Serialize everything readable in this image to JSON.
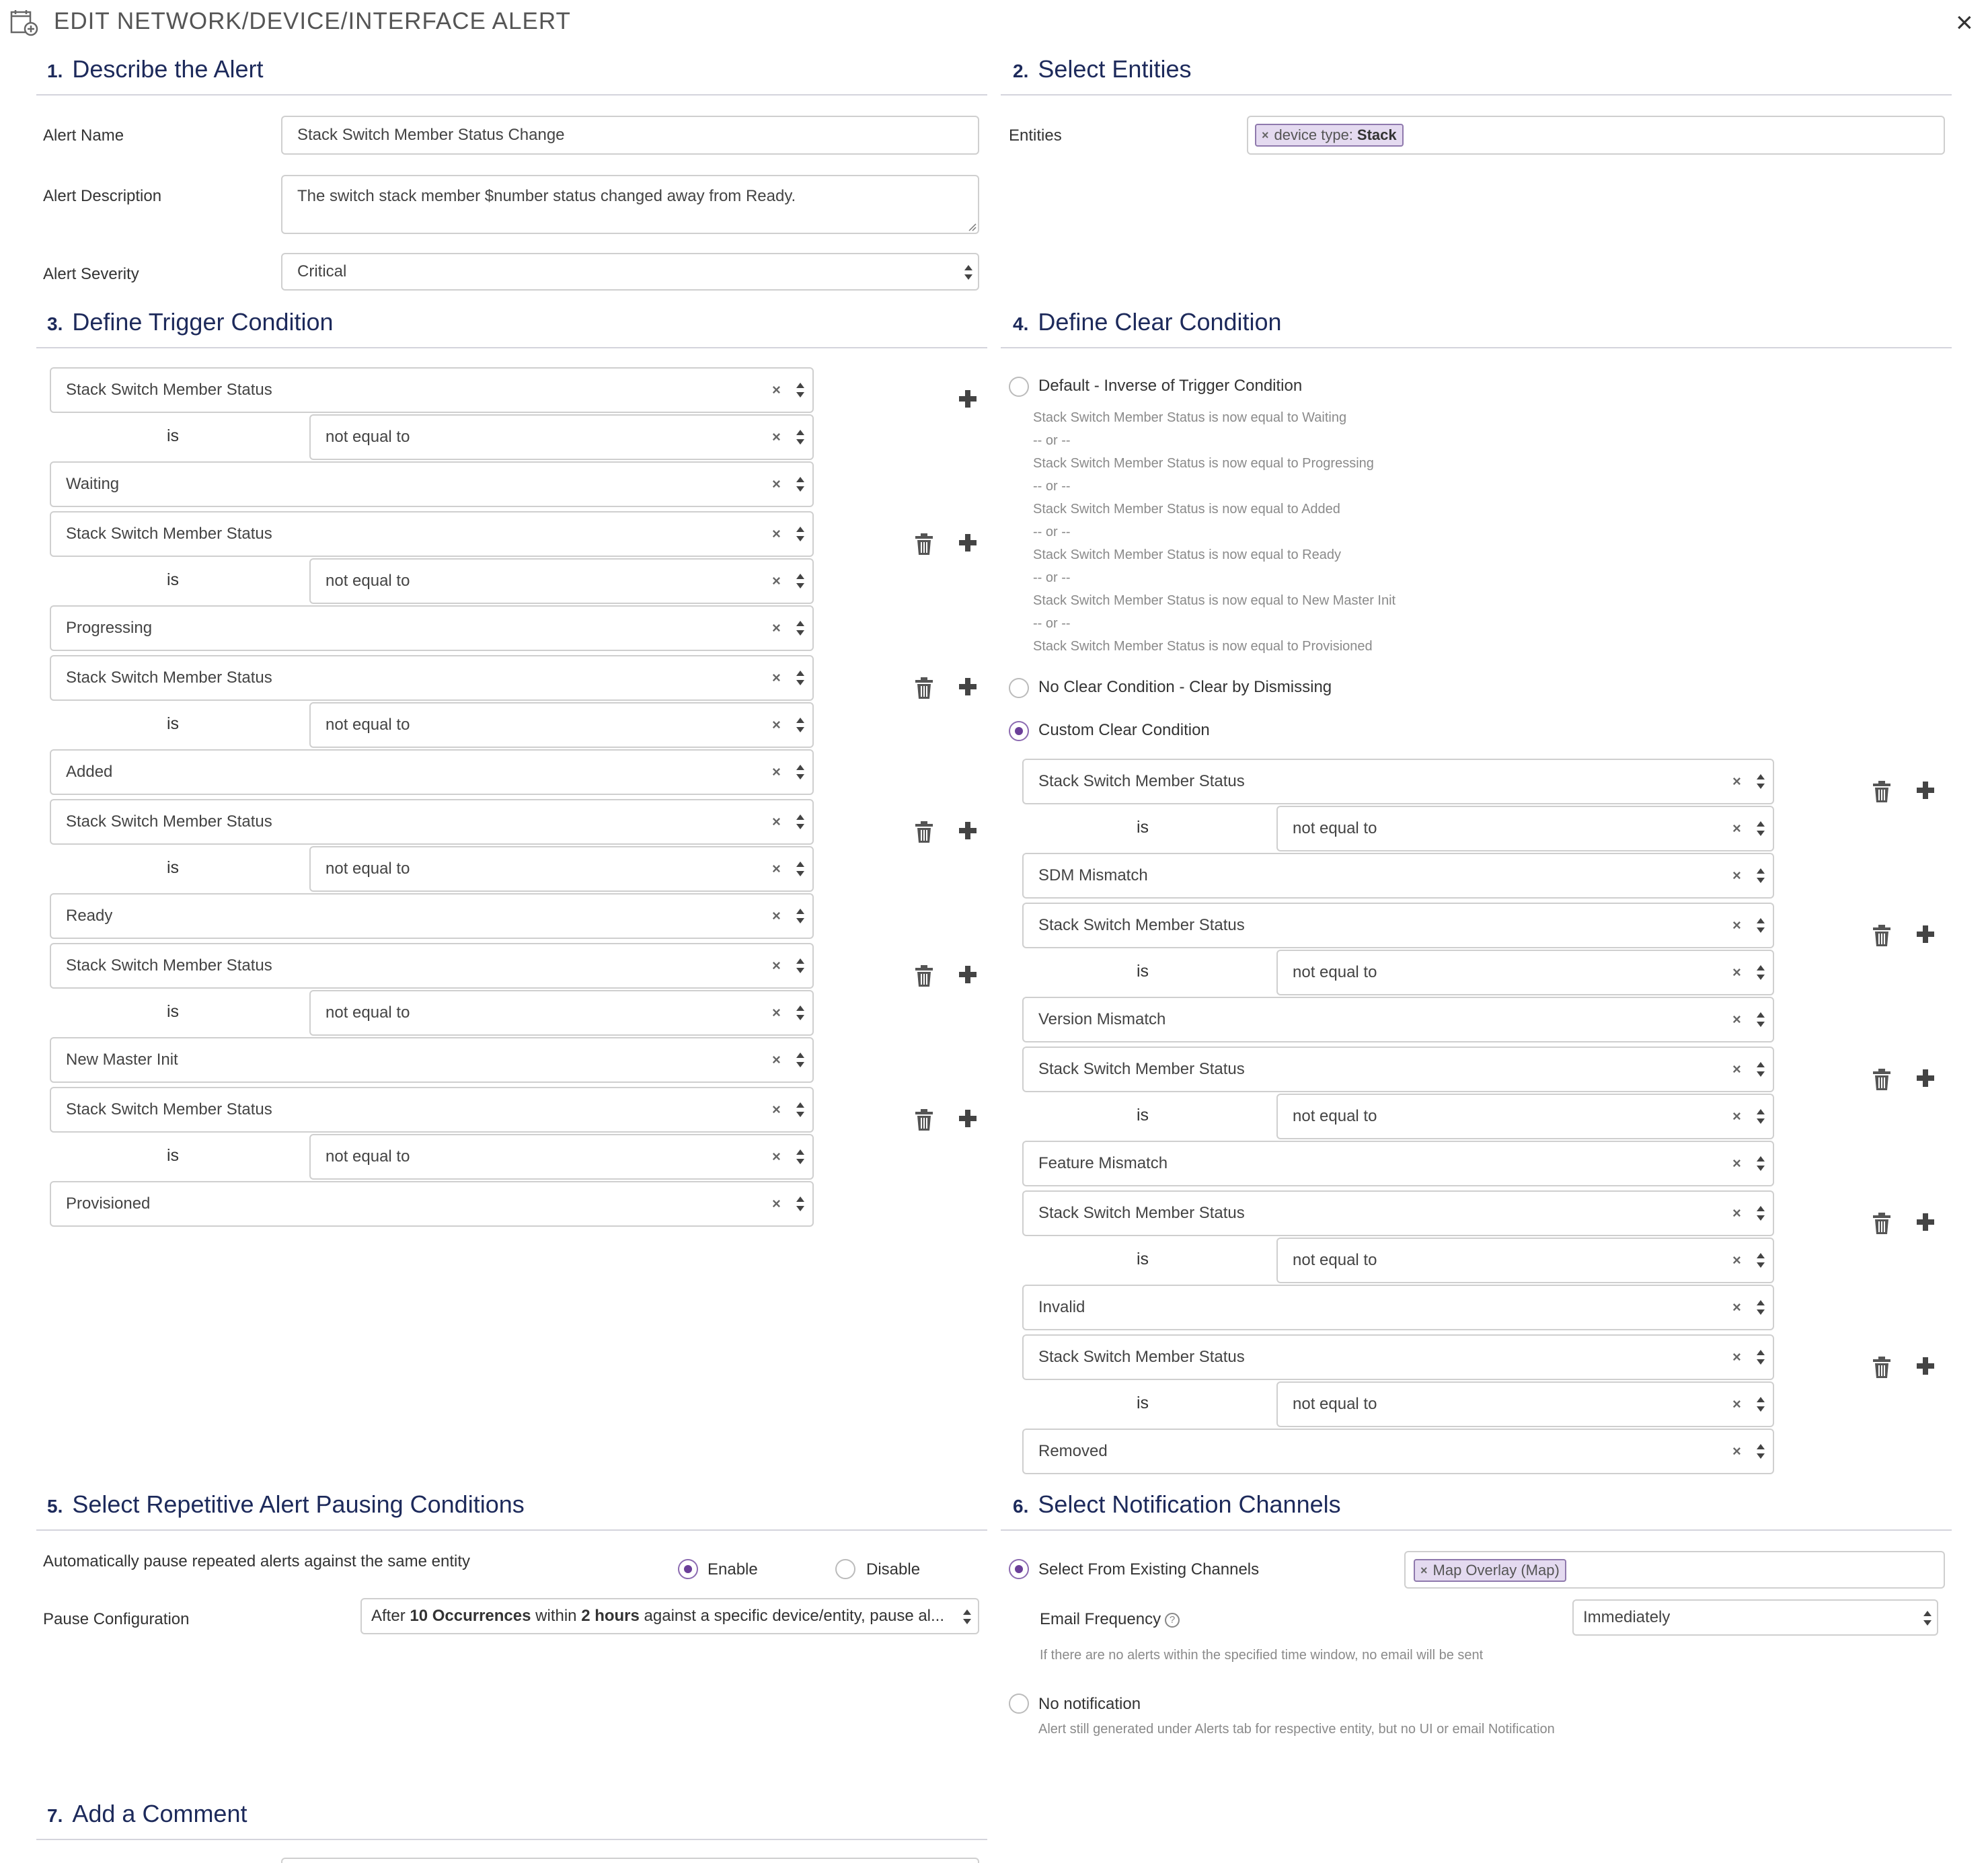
{
  "dialog": {
    "title": "EDIT NETWORK/DEVICE/INTERFACE ALERT",
    "close_label": "×"
  },
  "sections": {
    "s1": {
      "num": "1.",
      "title": "Describe the Alert"
    },
    "s2": {
      "num": "2.",
      "title": "Select Entities"
    },
    "s3": {
      "num": "3.",
      "title": "Define Trigger Condition"
    },
    "s4": {
      "num": "4.",
      "title": "Define Clear Condition"
    },
    "s5": {
      "num": "5.",
      "title": "Select Repetitive Alert Pausing Conditions"
    },
    "s6": {
      "num": "6.",
      "title": "Select Notification Channels"
    },
    "s7": {
      "num": "7.",
      "title": "Add a Comment"
    }
  },
  "describe": {
    "name_label": "Alert Name",
    "name_value": "Stack Switch Member Status Change",
    "description_label": "Alert Description",
    "description_value": "The switch stack member $number status changed away from Ready.",
    "severity_label": "Alert Severity",
    "severity_value": "Critical"
  },
  "entities": {
    "label": "Entities",
    "tag_key": "device type:",
    "tag_value": "Stack",
    "tag_remove": "×"
  },
  "trigger": {
    "conditions": [
      {
        "metric": "Stack Switch Member Status",
        "is": "is",
        "operator": "not equal to",
        "value": "Waiting"
      },
      {
        "metric": "Stack Switch Member Status",
        "is": "is",
        "operator": "not equal to",
        "value": "Progressing"
      },
      {
        "metric": "Stack Switch Member Status",
        "is": "is",
        "operator": "not equal to",
        "value": "Added"
      },
      {
        "metric": "Stack Switch Member Status",
        "is": "is",
        "operator": "not equal to",
        "value": "Ready"
      },
      {
        "metric": "Stack Switch Member Status",
        "is": "is",
        "operator": "not equal to",
        "value": "New Master Init"
      },
      {
        "metric": "Stack Switch Member Status",
        "is": "is",
        "operator": "not equal to",
        "value": "Provisioned"
      }
    ]
  },
  "clear": {
    "default_label": "Default - Inverse of Trigger Condition",
    "default_lines": [
      "Stack Switch Member Status is now equal to Waiting",
      "-- or --",
      "Stack Switch Member Status is now equal to Progressing",
      "-- or --",
      "Stack Switch Member Status is now equal to Added",
      "-- or --",
      "Stack Switch Member Status is now equal to Ready",
      "-- or --",
      "Stack Switch Member Status is now equal to New Master Init",
      "-- or --",
      "Stack Switch Member Status is now equal to Provisioned"
    ],
    "no_clear_label": "No Clear Condition - Clear by Dismissing",
    "custom_label": "Custom Clear Condition",
    "selected": "custom",
    "conditions": [
      {
        "metric": "Stack Switch Member Status",
        "is": "is",
        "operator": "not equal to",
        "value": "SDM Mismatch"
      },
      {
        "metric": "Stack Switch Member Status",
        "is": "is",
        "operator": "not equal to",
        "value": "Version Mismatch"
      },
      {
        "metric": "Stack Switch Member Status",
        "is": "is",
        "operator": "not equal to",
        "value": "Feature Mismatch"
      },
      {
        "metric": "Stack Switch Member Status",
        "is": "is",
        "operator": "not equal to",
        "value": "Invalid"
      },
      {
        "metric": "Stack Switch Member Status",
        "is": "is",
        "operator": "not equal to",
        "value": "Removed"
      }
    ]
  },
  "pausing": {
    "auto_label": "Automatically pause repeated alerts against the same entity",
    "enable_label": "Enable",
    "disable_label": "Disable",
    "selected": "enable",
    "config_label": "Pause Configuration",
    "config_p1": "After ",
    "config_b1": "10 Occurrences",
    "config_p2": " within ",
    "config_b2": "2 hours",
    "config_p3": " against a specific device/entity, pause al..."
  },
  "notification": {
    "existing_label": "Select From Existing Channels",
    "channel_tag": "Map Overlay (Map)",
    "channel_remove": "×",
    "email_freq_label": "Email Frequency",
    "email_freq_help": "?",
    "email_freq_value": "Immediately",
    "email_hint": "If there are no alerts within the specified time window, no email will be sent",
    "no_notif_label": "No notification",
    "no_notif_hint": "Alert still generated under Alerts tab for respective entity, but no UI or email Notification",
    "selected": "existing"
  },
  "colors": {
    "accent": "#6b3f99",
    "section_title": "#1d2a5b",
    "tag_bg": "#e4daf0",
    "border": "#cfcfcf"
  },
  "icons": {
    "trash": "trash-icon",
    "plus": "plus-icon",
    "clear": "clear-x-icon",
    "select_arrows": "select-arrows-icon",
    "alert_edit": "alert-edit-icon"
  }
}
